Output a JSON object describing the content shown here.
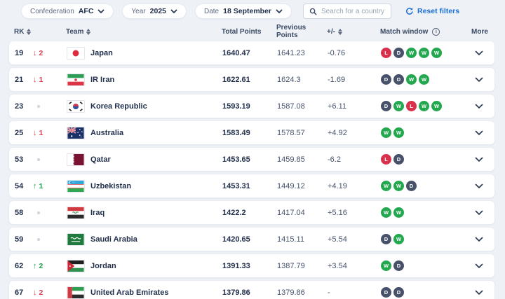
{
  "filters": {
    "confederation": {
      "label": "Confederation",
      "value": "AFC"
    },
    "year": {
      "label": "Year",
      "value": "2025"
    },
    "date": {
      "label": "Date",
      "value": "18 September"
    },
    "search_placeholder": "Search for a country",
    "reset_label": "Reset filters"
  },
  "icons": {
    "pill_dropdown": "chevron-down",
    "search": "magnifier",
    "reset": "circular-refresh-arrow",
    "header_sort": "sort-arrows",
    "match_window_info": "info-circle",
    "row_expand": "chevron-down"
  },
  "colors": {
    "accent_blue": "#1a6fd4",
    "win_green": "#23a84f",
    "draw_dark": "#47516a",
    "loss_red": "#d9304c",
    "rank_up_green": "#1fa24c",
    "rank_down_red": "#e03a55",
    "page_bg": "#eef1f6"
  },
  "table": {
    "headers": {
      "rk": "RK",
      "team": "Team",
      "total": "Total Points",
      "previous": "Previous Points",
      "diff": "+/-",
      "window": "Match window",
      "more": "More"
    },
    "rows": [
      {
        "rk": "19",
        "change": {
          "dir": "down",
          "value": "2"
        },
        "flag": "japan",
        "team": "Japan",
        "total": "1640.47",
        "previous": "1641.23",
        "diff": "-0.76",
        "window": [
          "L",
          "D",
          "W",
          "W",
          "W"
        ]
      },
      {
        "rk": "21",
        "change": {
          "dir": "down",
          "value": "1"
        },
        "flag": "iran",
        "team": "IR Iran",
        "total": "1622.61",
        "previous": "1624.3",
        "diff": "-1.69",
        "window": [
          "D",
          "D",
          "W",
          "W"
        ]
      },
      {
        "rk": "23",
        "change": {
          "dir": "none",
          "value": ""
        },
        "flag": "korea",
        "team": "Korea Republic",
        "total": "1593.19",
        "previous": "1587.08",
        "diff": "+6.11",
        "window": [
          "D",
          "W",
          "L",
          "W",
          "W"
        ]
      },
      {
        "rk": "25",
        "change": {
          "dir": "down",
          "value": "1"
        },
        "flag": "australia",
        "team": "Australia",
        "total": "1583.49",
        "previous": "1578.57",
        "diff": "+4.92",
        "window": [
          "W",
          "W"
        ]
      },
      {
        "rk": "53",
        "change": {
          "dir": "none",
          "value": ""
        },
        "flag": "qatar",
        "team": "Qatar",
        "total": "1453.65",
        "previous": "1459.85",
        "diff": "-6.2",
        "window": [
          "L",
          "D"
        ]
      },
      {
        "rk": "54",
        "change": {
          "dir": "up",
          "value": "1"
        },
        "flag": "uzbekistan",
        "team": "Uzbekistan",
        "total": "1453.31",
        "previous": "1449.12",
        "diff": "+4.19",
        "window": [
          "W",
          "W",
          "D"
        ]
      },
      {
        "rk": "58",
        "change": {
          "dir": "none",
          "value": ""
        },
        "flag": "iraq",
        "team": "Iraq",
        "total": "1422.2",
        "previous": "1417.04",
        "diff": "+5.16",
        "window": [
          "W",
          "W"
        ]
      },
      {
        "rk": "59",
        "change": {
          "dir": "none",
          "value": ""
        },
        "flag": "saudi",
        "team": "Saudi Arabia",
        "total": "1420.65",
        "previous": "1415.11",
        "diff": "+5.54",
        "window": [
          "D",
          "W"
        ]
      },
      {
        "rk": "62",
        "change": {
          "dir": "up",
          "value": "2"
        },
        "flag": "jordan",
        "team": "Jordan",
        "total": "1391.33",
        "previous": "1387.79",
        "diff": "+3.54",
        "window": [
          "W",
          "D"
        ]
      },
      {
        "rk": "67",
        "change": {
          "dir": "down",
          "value": "2"
        },
        "flag": "uae",
        "team": "United Arab Emirates",
        "total": "1379.86",
        "previous": "1379.86",
        "diff": "-",
        "window": [
          "D",
          "D"
        ]
      }
    ]
  }
}
